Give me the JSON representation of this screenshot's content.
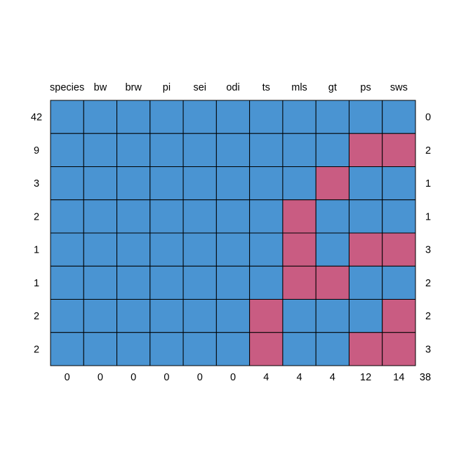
{
  "chart_data": {
    "type": "heatmap",
    "title": "",
    "xlabel": "",
    "ylabel": "",
    "columns": [
      "species",
      "bw",
      "brw",
      "pi",
      "sei",
      "odi",
      "ts",
      "mls",
      "gt",
      "ps",
      "sws"
    ],
    "row_counts": [
      "42",
      "9",
      "3",
      "2",
      "1",
      "1",
      "2",
      "2"
    ],
    "row_missing_totals": [
      "0",
      "2",
      "1",
      "1",
      "3",
      "2",
      "2",
      "3"
    ],
    "column_missing_totals": [
      "0",
      "0",
      "0",
      "0",
      "0",
      "0",
      "4",
      "4",
      "4",
      "12",
      "14"
    ],
    "grand_total": "38",
    "patterns": [
      [
        1,
        1,
        1,
        1,
        1,
        1,
        1,
        1,
        1,
        1,
        1
      ],
      [
        1,
        1,
        1,
        1,
        1,
        1,
        1,
        1,
        1,
        0,
        0
      ],
      [
        1,
        1,
        1,
        1,
        1,
        1,
        1,
        1,
        0,
        1,
        1
      ],
      [
        1,
        1,
        1,
        1,
        1,
        1,
        1,
        0,
        1,
        1,
        1
      ],
      [
        1,
        1,
        1,
        1,
        1,
        1,
        1,
        0,
        1,
        0,
        0
      ],
      [
        1,
        1,
        1,
        1,
        1,
        1,
        1,
        0,
        0,
        1,
        1
      ],
      [
        1,
        1,
        1,
        1,
        1,
        1,
        0,
        1,
        1,
        1,
        0
      ],
      [
        1,
        1,
        1,
        1,
        1,
        1,
        0,
        1,
        1,
        0,
        0
      ]
    ],
    "pattern_encoding": {
      "1": "observed",
      "0": "missing"
    },
    "colors": {
      "observed": "#4a94d2",
      "missing": "#c95c82",
      "grid": "#000000"
    }
  }
}
